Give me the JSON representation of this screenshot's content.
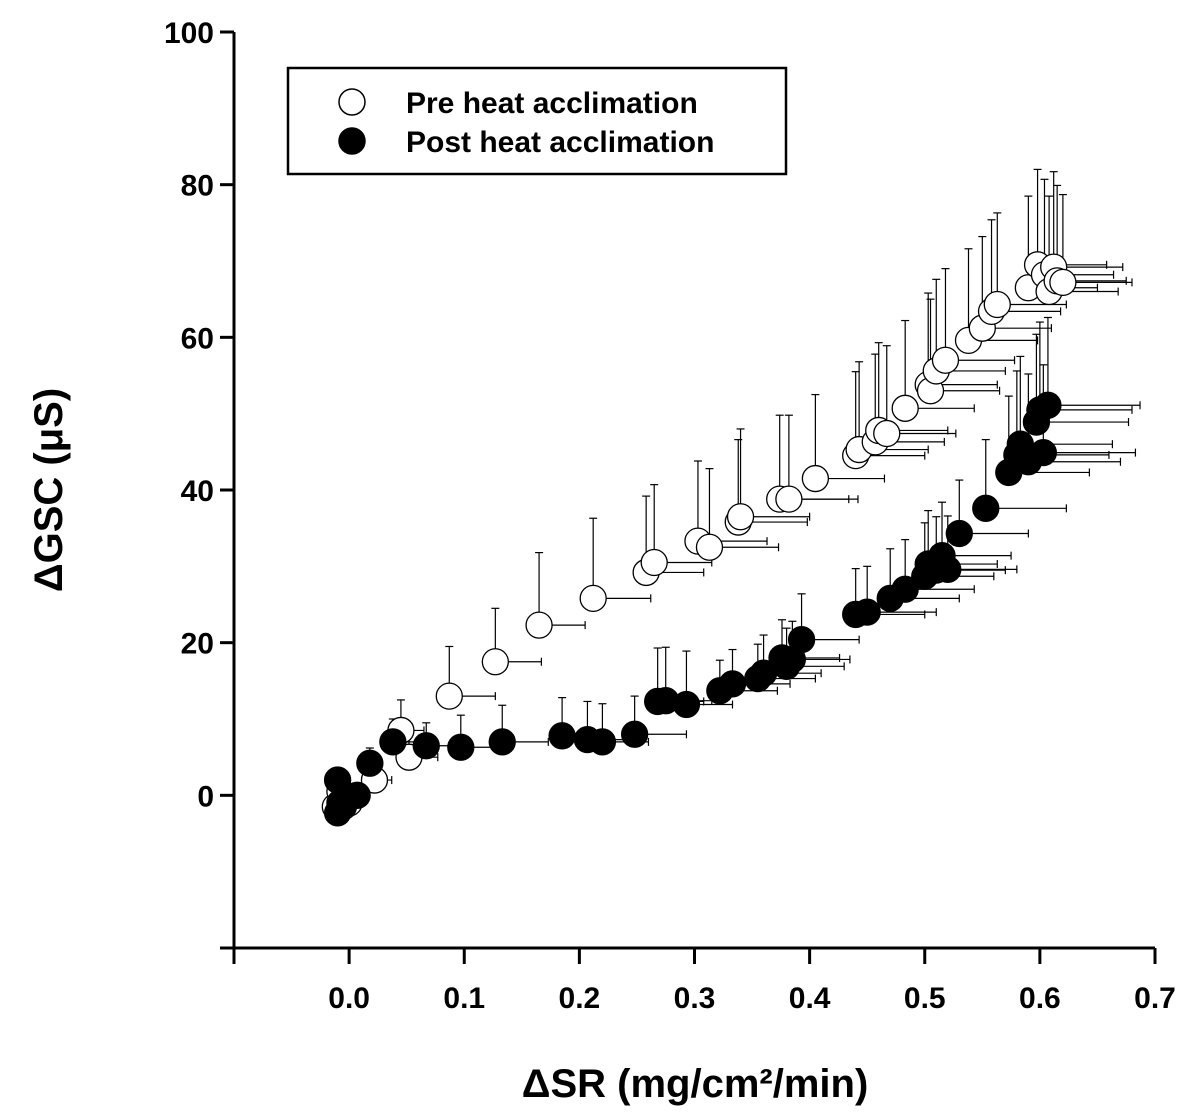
{
  "chart_data": {
    "type": "scatter",
    "title": "",
    "xlabel": "ΔSR (mg/cm²/min)",
    "ylabel": "ΔGSC (μS)",
    "xlim": [
      -0.1,
      0.7
    ],
    "ylim": [
      -20,
      100
    ],
    "x_ticks": [
      0.0,
      0.1,
      0.2,
      0.3,
      0.4,
      0.5,
      0.6,
      0.7
    ],
    "x_tick_labels": [
      "0.0",
      "0.1",
      "0.2",
      "0.3",
      "0.4",
      "0.5",
      "0.6",
      "0.7"
    ],
    "y_ticks": [
      0,
      20,
      40,
      60,
      80,
      100
    ],
    "y_tick_labels": [
      "0",
      "20",
      "40",
      "60",
      "80",
      "100"
    ],
    "grid": false,
    "legend_position": "top-left",
    "series": [
      {
        "name": "Pre heat acclimation",
        "marker": "open-circle",
        "fill": "#ffffff",
        "stroke": "#000000",
        "points": [
          {
            "x": -0.012,
            "y": -1.5,
            "xerr": 0.005,
            "yerr": 1.5
          },
          {
            "x": -0.008,
            "y": 0.5,
            "xerr": 0.006,
            "yerr": 1.5
          },
          {
            "x": 0.0,
            "y": -1.0,
            "xerr": 0.008,
            "yerr": 2.0
          },
          {
            "x": 0.022,
            "y": 2.0,
            "xerr": 0.015,
            "yerr": 3.0
          },
          {
            "x": 0.045,
            "y": 8.5,
            "xerr": 0.02,
            "yerr": 4.0
          },
          {
            "x": 0.052,
            "y": 5.0,
            "xerr": 0.025,
            "yerr": 3.5
          },
          {
            "x": 0.087,
            "y": 13.0,
            "xerr": 0.04,
            "yerr": 6.5
          },
          {
            "x": 0.127,
            "y": 17.5,
            "xerr": 0.04,
            "yerr": 7.0
          },
          {
            "x": 0.165,
            "y": 22.3,
            "xerr": 0.04,
            "yerr": 9.5
          },
          {
            "x": 0.212,
            "y": 25.8,
            "xerr": 0.05,
            "yerr": 10.5
          },
          {
            "x": 0.258,
            "y": 29.2,
            "xerr": 0.05,
            "yerr": 10.0
          },
          {
            "x": 0.265,
            "y": 30.5,
            "xerr": 0.05,
            "yerr": 10.2
          },
          {
            "x": 0.303,
            "y": 33.3,
            "xerr": 0.06,
            "yerr": 10.5
          },
          {
            "x": 0.313,
            "y": 32.5,
            "xerr": 0.06,
            "yerr": 10.3
          },
          {
            "x": 0.338,
            "y": 35.8,
            "xerr": 0.06,
            "yerr": 10.8
          },
          {
            "x": 0.34,
            "y": 36.5,
            "xerr": 0.06,
            "yerr": 11.5
          },
          {
            "x": 0.374,
            "y": 38.8,
            "xerr": 0.06,
            "yerr": 11.0
          },
          {
            "x": 0.382,
            "y": 38.8,
            "xerr": 0.06,
            "yerr": 11.0
          },
          {
            "x": 0.405,
            "y": 41.5,
            "xerr": 0.06,
            "yerr": 11.0
          },
          {
            "x": 0.44,
            "y": 44.5,
            "xerr": 0.06,
            "yerr": 11.0
          },
          {
            "x": 0.443,
            "y": 45.3,
            "xerr": 0.06,
            "yerr": 11.5
          },
          {
            "x": 0.457,
            "y": 46.3,
            "xerr": 0.06,
            "yerr": 11.5
          },
          {
            "x": 0.46,
            "y": 47.8,
            "xerr": 0.06,
            "yerr": 11.5
          },
          {
            "x": 0.467,
            "y": 47.4,
            "xerr": 0.06,
            "yerr": 11.5
          },
          {
            "x": 0.483,
            "y": 50.7,
            "xerr": 0.06,
            "yerr": 11.5
          },
          {
            "x": 0.503,
            "y": 53.8,
            "xerr": 0.06,
            "yerr": 12.0
          },
          {
            "x": 0.505,
            "y": 53.0,
            "xerr": 0.06,
            "yerr": 12.0
          },
          {
            "x": 0.51,
            "y": 55.6,
            "xerr": 0.06,
            "yerr": 12.0
          },
          {
            "x": 0.518,
            "y": 57.0,
            "xerr": 0.06,
            "yerr": 12.0
          },
          {
            "x": 0.538,
            "y": 59.6,
            "xerr": 0.06,
            "yerr": 12.0
          },
          {
            "x": 0.55,
            "y": 61.2,
            "xerr": 0.06,
            "yerr": 12.0
          },
          {
            "x": 0.558,
            "y": 63.4,
            "xerr": 0.06,
            "yerr": 12.0
          },
          {
            "x": 0.563,
            "y": 64.3,
            "xerr": 0.06,
            "yerr": 12.0
          },
          {
            "x": 0.59,
            "y": 66.5,
            "xerr": 0.06,
            "yerr": 12.0
          },
          {
            "x": 0.598,
            "y": 69.5,
            "xerr": 0.06,
            "yerr": 12.5
          },
          {
            "x": 0.604,
            "y": 68.2,
            "xerr": 0.06,
            "yerr": 12.5
          },
          {
            "x": 0.608,
            "y": 66.0,
            "xerr": 0.06,
            "yerr": 12.5
          },
          {
            "x": 0.612,
            "y": 69.2,
            "xerr": 0.06,
            "yerr": 12.5
          },
          {
            "x": 0.615,
            "y": 67.4,
            "xerr": 0.06,
            "yerr": 12.5
          },
          {
            "x": 0.62,
            "y": 67.2,
            "xerr": 0.06,
            "yerr": 11.5
          }
        ]
      },
      {
        "name": "Post heat acclimation",
        "marker": "filled-circle",
        "fill": "#000000",
        "stroke": "#000000",
        "points": [
          {
            "x": -0.01,
            "y": -2.3,
            "xerr": 0.004,
            "yerr": 1.0
          },
          {
            "x": -0.008,
            "y": -1.0,
            "xerr": 0.004,
            "yerr": 1.0
          },
          {
            "x": -0.005,
            "y": -1.5,
            "xerr": 0.004,
            "yerr": 1.0
          },
          {
            "x": -0.01,
            "y": 2.0,
            "xerr": 0.004,
            "yerr": 1.0
          },
          {
            "x": 0.007,
            "y": 0.0,
            "xerr": 0.005,
            "yerr": 1.0
          },
          {
            "x": 0.018,
            "y": 4.2,
            "xerr": 0.01,
            "yerr": 2.0
          },
          {
            "x": 0.038,
            "y": 7.0,
            "xerr": 0.02,
            "yerr": 3.0
          },
          {
            "x": 0.067,
            "y": 6.5,
            "xerr": 0.03,
            "yerr": 3.0
          },
          {
            "x": 0.097,
            "y": 6.3,
            "xerr": 0.035,
            "yerr": 4.2
          },
          {
            "x": 0.133,
            "y": 7.0,
            "xerr": 0.04,
            "yerr": 4.8
          },
          {
            "x": 0.185,
            "y": 7.8,
            "xerr": 0.04,
            "yerr": 5.0
          },
          {
            "x": 0.207,
            "y": 7.3,
            "xerr": 0.04,
            "yerr": 5.0
          },
          {
            "x": 0.22,
            "y": 7.0,
            "xerr": 0.04,
            "yerr": 5.0
          },
          {
            "x": 0.248,
            "y": 8.0,
            "xerr": 0.045,
            "yerr": 5.0
          },
          {
            "x": 0.268,
            "y": 12.3,
            "xerr": 0.04,
            "yerr": 7.0
          },
          {
            "x": 0.275,
            "y": 12.4,
            "xerr": 0.04,
            "yerr": 7.0
          },
          {
            "x": 0.293,
            "y": 11.9,
            "xerr": 0.04,
            "yerr": 7.0
          },
          {
            "x": 0.322,
            "y": 13.7,
            "xerr": 0.05,
            "yerr": 4.0
          },
          {
            "x": 0.333,
            "y": 14.6,
            "xerr": 0.05,
            "yerr": 4.5
          },
          {
            "x": 0.355,
            "y": 15.3,
            "xerr": 0.05,
            "yerr": 4.5
          },
          {
            "x": 0.36,
            "y": 16.0,
            "xerr": 0.05,
            "yerr": 5.0
          },
          {
            "x": 0.376,
            "y": 18.0,
            "xerr": 0.05,
            "yerr": 5.0
          },
          {
            "x": 0.38,
            "y": 16.9,
            "xerr": 0.05,
            "yerr": 5.0
          },
          {
            "x": 0.385,
            "y": 17.8,
            "xerr": 0.05,
            "yerr": 5.0
          },
          {
            "x": 0.393,
            "y": 20.4,
            "xerr": 0.05,
            "yerr": 6.0
          },
          {
            "x": 0.44,
            "y": 23.7,
            "xerr": 0.06,
            "yerr": 6.0
          },
          {
            "x": 0.45,
            "y": 24.0,
            "xerr": 0.06,
            "yerr": 6.0
          },
          {
            "x": 0.47,
            "y": 25.8,
            "xerr": 0.06,
            "yerr": 6.5
          },
          {
            "x": 0.483,
            "y": 27.0,
            "xerr": 0.06,
            "yerr": 6.5
          },
          {
            "x": 0.5,
            "y": 28.7,
            "xerr": 0.06,
            "yerr": 7.0
          },
          {
            "x": 0.503,
            "y": 30.3,
            "xerr": 0.06,
            "yerr": 7.0
          },
          {
            "x": 0.51,
            "y": 29.5,
            "xerr": 0.06,
            "yerr": 7.0
          },
          {
            "x": 0.515,
            "y": 31.4,
            "xerr": 0.06,
            "yerr": 7.0
          },
          {
            "x": 0.52,
            "y": 29.6,
            "xerr": 0.06,
            "yerr": 7.0
          },
          {
            "x": 0.53,
            "y": 34.3,
            "xerr": 0.06,
            "yerr": 7.0
          },
          {
            "x": 0.553,
            "y": 37.6,
            "xerr": 0.07,
            "yerr": 9.0
          },
          {
            "x": 0.573,
            "y": 42.3,
            "xerr": 0.07,
            "yerr": 10.0
          },
          {
            "x": 0.58,
            "y": 44.6,
            "xerr": 0.08,
            "yerr": 11.0
          },
          {
            "x": 0.583,
            "y": 46.0,
            "xerr": 0.08,
            "yerr": 11.5
          },
          {
            "x": 0.59,
            "y": 43.7,
            "xerr": 0.08,
            "yerr": 11.5
          },
          {
            "x": 0.597,
            "y": 48.9,
            "xerr": 0.08,
            "yerr": 11.5
          },
          {
            "x": 0.6,
            "y": 50.5,
            "xerr": 0.08,
            "yerr": 11.5
          },
          {
            "x": 0.603,
            "y": 44.9,
            "xerr": 0.08,
            "yerr": 11.5
          },
          {
            "x": 0.607,
            "y": 51.1,
            "xerr": 0.08,
            "yerr": 11.5
          }
        ]
      }
    ]
  }
}
